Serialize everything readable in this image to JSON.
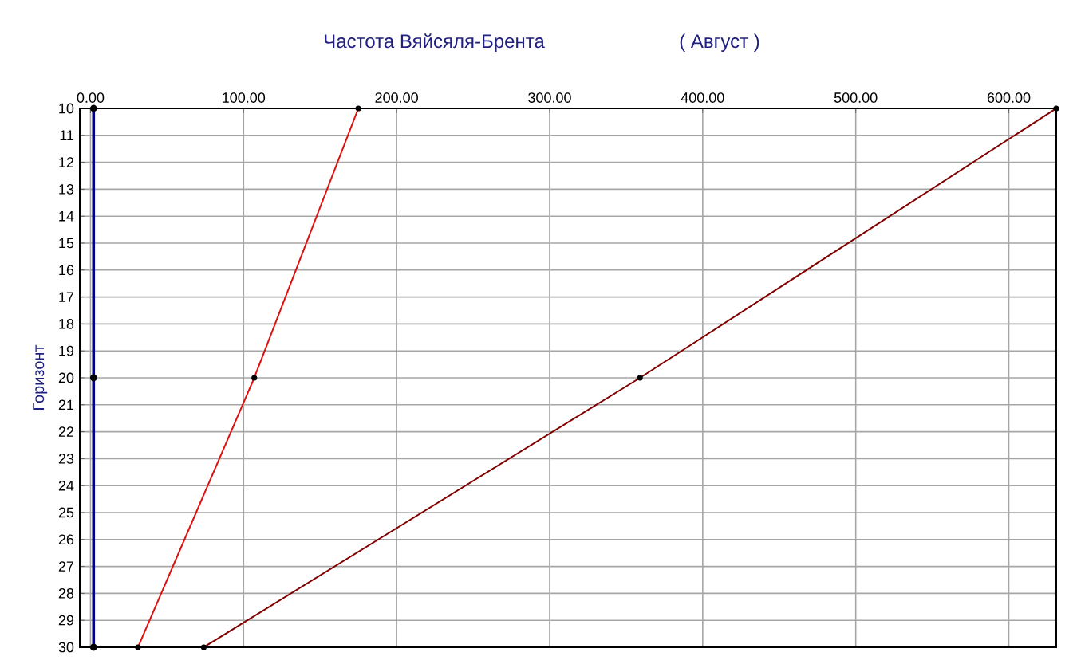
{
  "chart_data": {
    "type": "line",
    "title": "Частота Вяйсяля-Брента",
    "subtitle": "( Август )",
    "ylabel": "Горизонт",
    "xlim": [
      -7,
      631
    ],
    "xticks": [
      {
        "value": 0,
        "label": "0.00"
      },
      {
        "value": 100,
        "label": "100.00"
      },
      {
        "value": 200,
        "label": "200.00"
      },
      {
        "value": 300,
        "label": "300.00"
      },
      {
        "value": 400,
        "label": "400.00"
      },
      {
        "value": 500,
        "label": "500.00"
      },
      {
        "value": 600,
        "label": "600.00"
      }
    ],
    "ylim": [
      30,
      10
    ],
    "yticks": [
      10,
      11,
      12,
      13,
      14,
      15,
      16,
      17,
      18,
      19,
      20,
      21,
      22,
      23,
      24,
      25,
      26,
      27,
      28,
      29,
      30
    ],
    "grid": true,
    "marker": "circle",
    "line_style": "solid",
    "series": [
      {
        "color": "#000080",
        "x": [
          2,
          2,
          2
        ],
        "values": [
          10,
          20,
          30
        ]
      },
      {
        "color": "#dd1111",
        "x": [
          175,
          107,
          31
        ],
        "values": [
          10,
          20,
          30
        ]
      },
      {
        "color": "#800000",
        "x": [
          631,
          359,
          74
        ],
        "values": [
          10,
          20,
          30
        ]
      }
    ]
  }
}
